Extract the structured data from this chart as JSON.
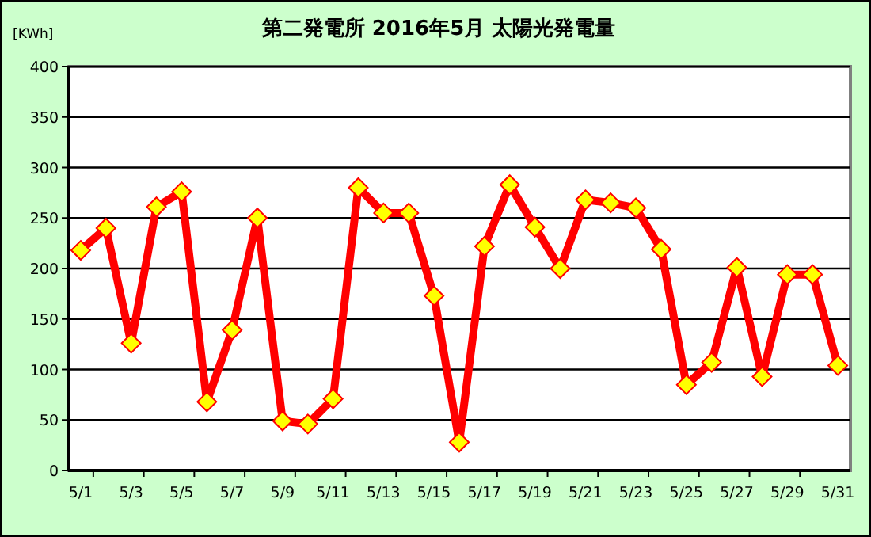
{
  "chart_data": {
    "type": "line",
    "title": "第二発電所  2016年5月 太陽光発電量",
    "ylabel": "[KWh]",
    "categories": [
      "5/1",
      null,
      "5/3",
      null,
      "5/5",
      null,
      "5/7",
      null,
      "5/9",
      null,
      "5/11",
      null,
      "5/13",
      null,
      "5/15",
      null,
      "5/17",
      null,
      "5/19",
      null,
      "5/21",
      null,
      "5/23",
      null,
      "5/25",
      null,
      "5/27",
      null,
      "5/29",
      null,
      "5/31"
    ],
    "series": [
      {
        "color": "#ff0000",
        "values": [
          218,
          240,
          126,
          261,
          276,
          68,
          139,
          250,
          49,
          46,
          71,
          280,
          255,
          255,
          173,
          28,
          222,
          283,
          241,
          200,
          268,
          265,
          260,
          219,
          85,
          107,
          201,
          93,
          194,
          194,
          104
        ]
      }
    ],
    "ylim": [
      0,
      400
    ],
    "yticks": [
      0,
      50,
      100,
      150,
      200,
      250,
      300,
      350,
      400
    ],
    "grid": "y",
    "marker": "diamond",
    "line_style": "solid"
  }
}
